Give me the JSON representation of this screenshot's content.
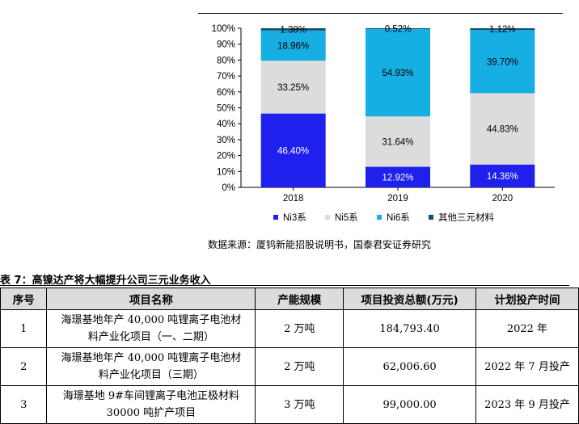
{
  "chart_data": {
    "type": "bar",
    "stacked": true,
    "categories": [
      "2018",
      "2019",
      "2020"
    ],
    "series": [
      {
        "name": "Ni3系",
        "color": "#1f1fee",
        "values": [
          46.4,
          12.92,
          14.36
        ],
        "labels": [
          "46.40%",
          "12.92%",
          "14.36%"
        ],
        "label_color": "#ffffff"
      },
      {
        "name": "Ni5系",
        "color": "#dcdcdc",
        "values": [
          33.25,
          31.64,
          44.83
        ],
        "labels": [
          "33.25%",
          "31.64%",
          "44.83%"
        ],
        "label_color": "#000000"
      },
      {
        "name": "Ni6系",
        "color": "#17aee4",
        "values": [
          18.96,
          54.93,
          39.7
        ],
        "labels": [
          "18.96%",
          "54.93%",
          "39.70%"
        ],
        "label_color": "#000000"
      },
      {
        "name": "其他三元材料",
        "color": "#0e4e6e",
        "values": [
          1.38,
          0.52,
          1.12
        ],
        "labels": [
          "1.38%",
          "0.52%",
          "1.12%"
        ],
        "label_color": "#000000"
      }
    ],
    "yticks": [
      "0%",
      "10%",
      "20%",
      "30%",
      "40%",
      "50%",
      "60%",
      "70%",
      "80%",
      "90%",
      "100%"
    ],
    "ylim": [
      0,
      100
    ],
    "legend_position": "bottom",
    "grid": false
  },
  "source_text": "数据来源：厦钨新能招股说明书，国泰君安证券研究",
  "table_caption": "表 7：高镍达产将大幅提升公司三元业务收入",
  "table": {
    "headers": [
      "序号",
      "项目名称",
      "产能规模",
      "项目投资总额(万元)",
      "计划投产时间"
    ],
    "rows": [
      {
        "no": "1",
        "name_line1": "海璟基地年产 40,000 吨锂离子电池材",
        "name_line2": "料产业化项目（一、二期）",
        "capacity": "2 万吨",
        "investment": "184,793.40",
        "time": "2022 年"
      },
      {
        "no": "2",
        "name_line1": "海璟基地年产 40,000 吨锂离子电池材",
        "name_line2": "料产业化项目（三期）",
        "capacity": "2 万吨",
        "investment": "62,006.60",
        "time": "2022 年 7 月投产"
      },
      {
        "no": "3",
        "name_line1": "海璟基地 9#车间锂离子电池正极材料",
        "name_line2": "30000 吨扩产项目",
        "capacity": "3 万吨",
        "investment": "99,000.00",
        "time": "2023 年 9 月投产"
      }
    ]
  }
}
